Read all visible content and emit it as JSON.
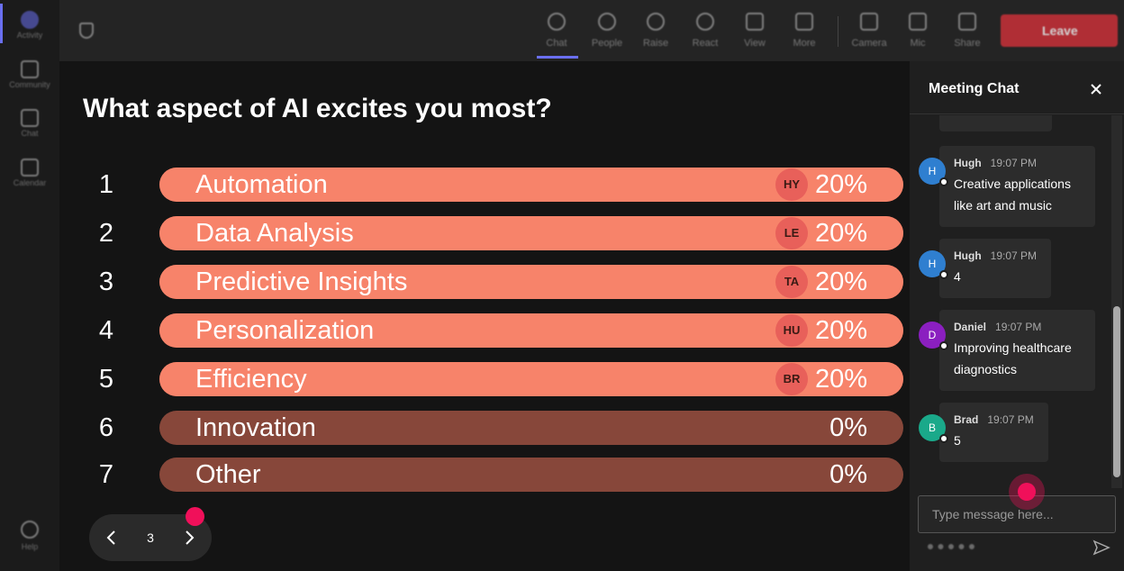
{
  "sidebar": {
    "items": [
      "Activity",
      "Community",
      "Chat",
      "Calendar"
    ],
    "help": "Help"
  },
  "toolbar": {
    "items": [
      "Chat",
      "People",
      "Raise",
      "React",
      "View",
      "More",
      "Camera",
      "Mic",
      "Share"
    ],
    "leave": "Leave"
  },
  "poll": {
    "question": "What aspect of AI excites you most?",
    "options": [
      {
        "rank": 1,
        "label": "Automation",
        "initials": "HY",
        "value": 20,
        "value_label": "20%"
      },
      {
        "rank": 2,
        "label": "Data Analysis",
        "initials": "LE",
        "value": 20,
        "value_label": "20%"
      },
      {
        "rank": 3,
        "label": "Predictive Insights",
        "initials": "TA",
        "value": 20,
        "value_label": "20%"
      },
      {
        "rank": 4,
        "label": "Personalization",
        "initials": "HU",
        "value": 20,
        "value_label": "20%"
      },
      {
        "rank": 5,
        "label": "Efficiency",
        "initials": "BR",
        "value": 20,
        "value_label": "20%"
      },
      {
        "rank": 6,
        "label": "Innovation",
        "value": 0,
        "value_label": "0%"
      },
      {
        "rank": 7,
        "label": "Other",
        "value": 0,
        "value_label": "0%"
      }
    ],
    "page": 3
  },
  "chat": {
    "title": "Meeting Chat",
    "messages": [
      {
        "initial": "H",
        "name": "Hugh",
        "time": "19:07 PM",
        "text": "Creative applications like art and music"
      },
      {
        "initial": "H",
        "name": "Hugh",
        "time": "19:07 PM",
        "text": "4"
      },
      {
        "initial": "D",
        "name": "Daniel",
        "time": "19:07 PM",
        "text": "Improving healthcare diagnostics"
      },
      {
        "initial": "B",
        "name": "Brad",
        "time": "19:07 PM",
        "text": "5"
      }
    ],
    "placeholder": "Type message here..."
  }
}
